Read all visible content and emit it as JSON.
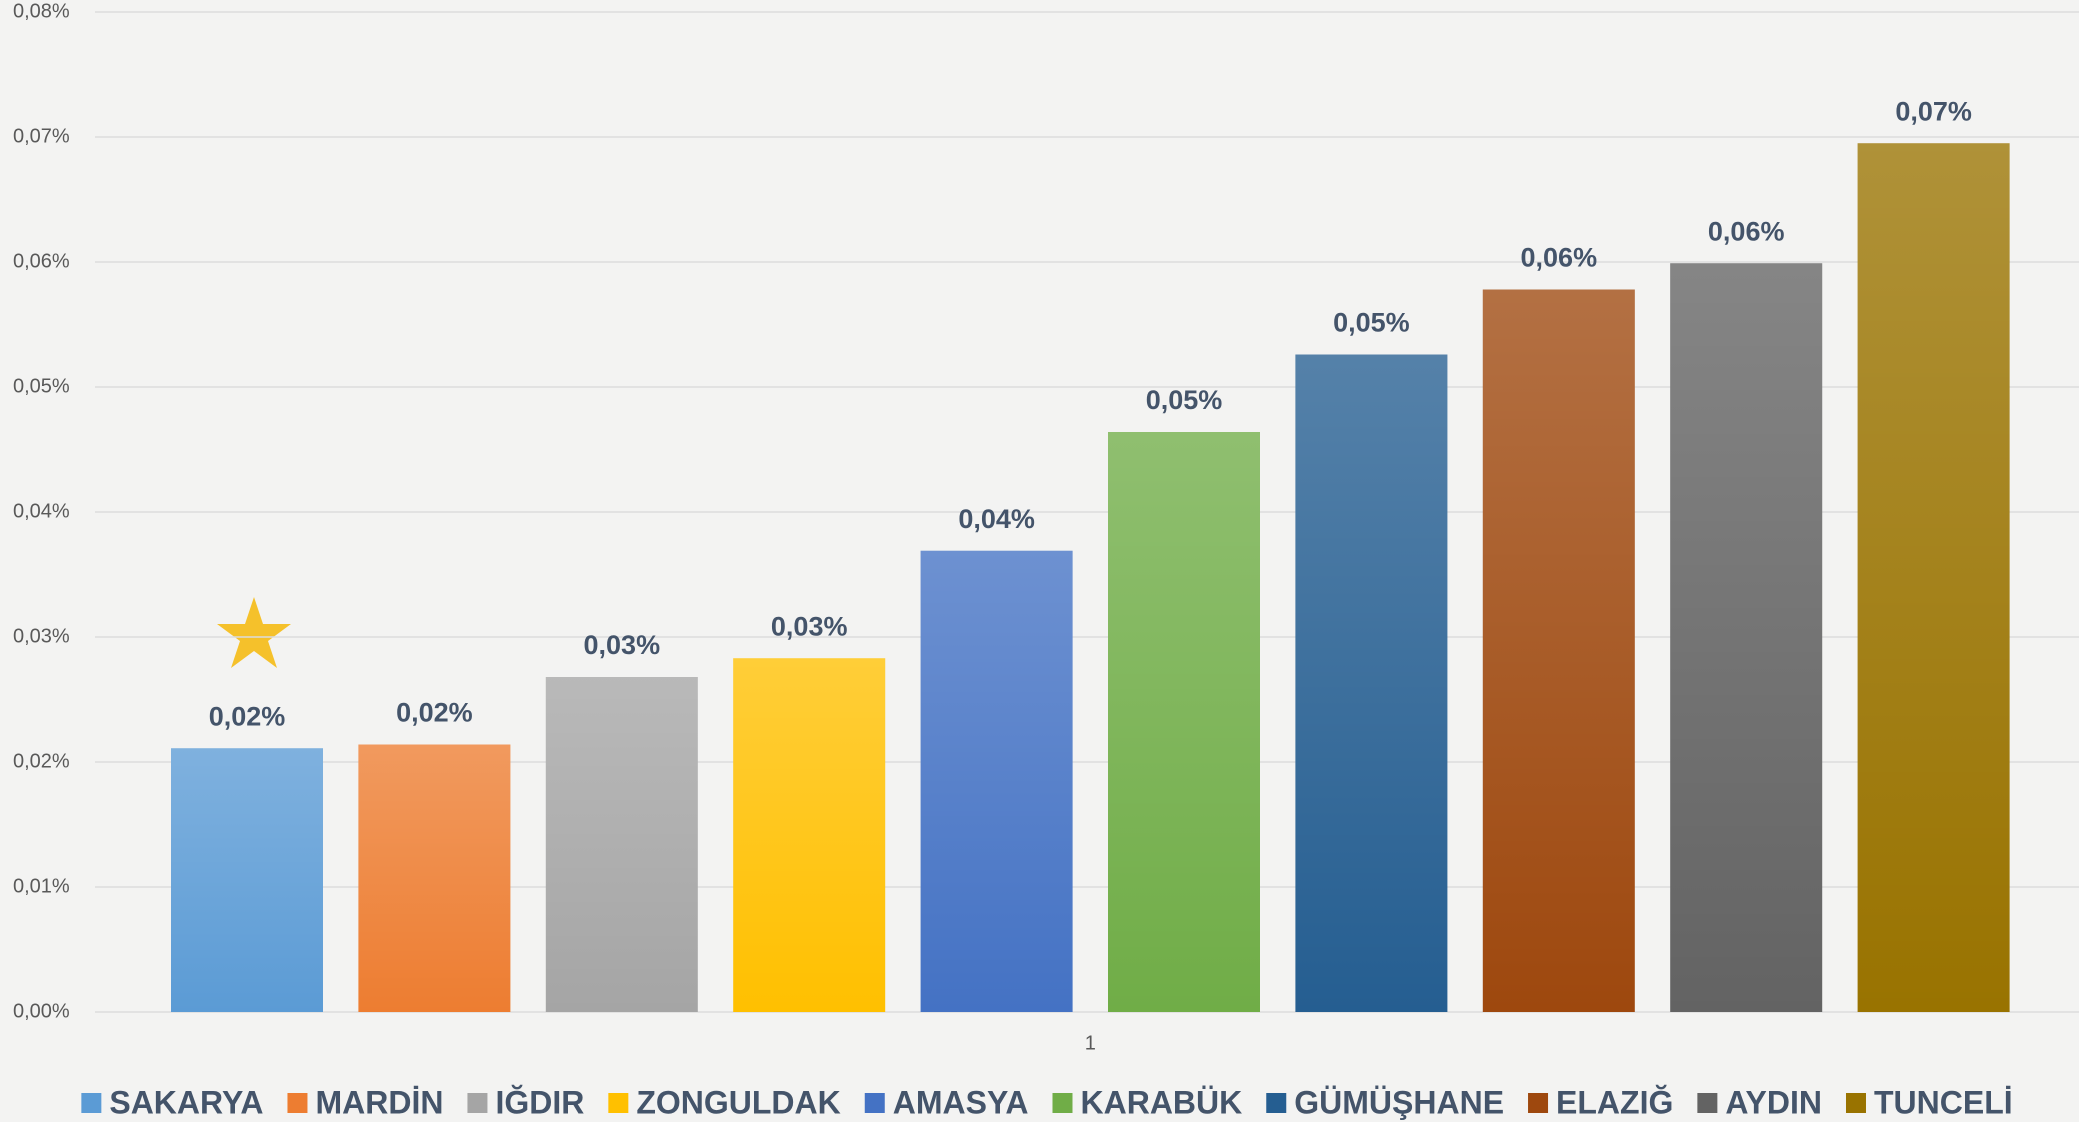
{
  "chart_data": {
    "type": "bar",
    "categories": [
      "1"
    ],
    "ylim": [
      0,
      0.08
    ],
    "yticks": [
      {
        "value": 0,
        "label": "0,00%"
      },
      {
        "value": 0.01,
        "label": "0,01%"
      },
      {
        "value": 0.02,
        "label": "0,02%"
      },
      {
        "value": 0.03,
        "label": "0,03%"
      },
      {
        "value": 0.04,
        "label": "0,04%"
      },
      {
        "value": 0.05,
        "label": "0,05%"
      },
      {
        "value": 0.06,
        "label": "0,06%"
      },
      {
        "value": 0.07,
        "label": "0,07%"
      },
      {
        "value": 0.08,
        "label": "0,08%"
      }
    ],
    "grid": true,
    "legend": "bottom",
    "series": [
      {
        "name": "SAKARYA",
        "color": "#5b9bd5",
        "values": [
          0.0211
        ],
        "value_labels": [
          "0,02%"
        ]
      },
      {
        "name": "MARDİN",
        "color": "#ed7d31",
        "values": [
          0.0214
        ],
        "value_labels": [
          "0,02%"
        ]
      },
      {
        "name": "IĞDIR",
        "color": "#a5a5a5",
        "values": [
          0.0268
        ],
        "value_labels": [
          "0,03%"
        ]
      },
      {
        "name": "ZONGULDAK",
        "color": "#ffc000",
        "values": [
          0.0283
        ],
        "value_labels": [
          "0,03%"
        ]
      },
      {
        "name": "AMASYA",
        "color": "#4472c4",
        "values": [
          0.0369
        ],
        "value_labels": [
          "0,04%"
        ]
      },
      {
        "name": "KARABÜK",
        "color": "#70ad47",
        "values": [
          0.0464
        ],
        "value_labels": [
          "0,05%"
        ]
      },
      {
        "name": "GÜMÜŞHANE",
        "color": "#255e91",
        "values": [
          0.0526
        ],
        "value_labels": [
          "0,05%"
        ]
      },
      {
        "name": "ELAZIĞ",
        "color": "#9e480e",
        "values": [
          0.0578
        ],
        "value_labels": [
          "0,06%"
        ]
      },
      {
        "name": "AYDIN",
        "color": "#636363",
        "values": [
          0.0599
        ],
        "value_labels": [
          "0,06%"
        ]
      },
      {
        "name": "TUNCELİ",
        "color": "#997300",
        "values": [
          0.0695
        ],
        "value_labels": [
          "0,07%"
        ]
      }
    ]
  }
}
